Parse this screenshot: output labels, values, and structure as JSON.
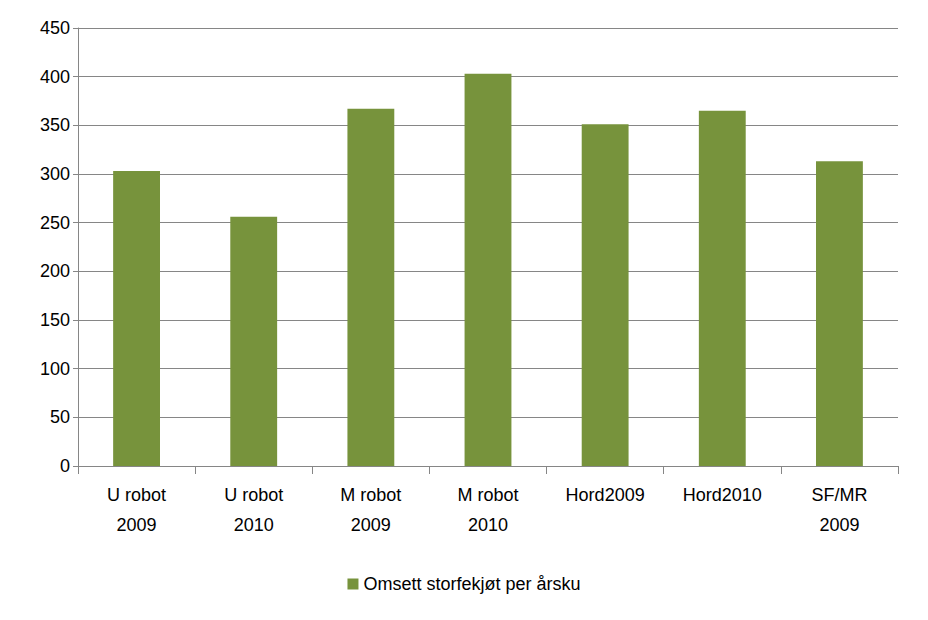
{
  "chart_data": {
    "type": "bar",
    "categories": [
      "U robot\n2009",
      "U robot\n2010",
      "M robot\n2009",
      "M robot\n2010",
      "Hord2009",
      "Hord2010",
      "SF/MR\n2009"
    ],
    "series": [
      {
        "name": "Omsett storfekjøt per årsku",
        "color": "#77933c",
        "values": [
          303,
          256,
          367,
          403,
          351,
          365,
          313
        ]
      }
    ],
    "ylim": [
      0,
      450
    ],
    "yticks": [
      0,
      50,
      100,
      150,
      200,
      250,
      300,
      350,
      400,
      450
    ],
    "grid": true,
    "legend": "bottom"
  }
}
